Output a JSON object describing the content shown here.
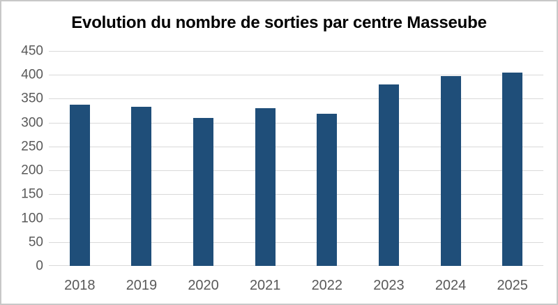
{
  "chart_data": {
    "type": "bar",
    "title": "Evolution du nombre de sorties par centre Masseube",
    "categories": [
      "2018",
      "2019",
      "2020",
      "2021",
      "2022",
      "2023",
      "2024",
      "2025"
    ],
    "values": [
      337,
      333,
      310,
      330,
      318,
      380,
      397,
      405
    ],
    "xlabel": "",
    "ylabel": "",
    "ylim": [
      0,
      450
    ],
    "ytick_step": 50,
    "yticks": [
      0,
      50,
      100,
      150,
      200,
      250,
      300,
      350,
      400,
      450
    ],
    "grid": true,
    "legend": false,
    "colors": {
      "bar": "#1F4E79",
      "gridline": "#D9D9D9",
      "axis_labels": "#595959",
      "title": "#000000",
      "frame_border": "#C8C8C8",
      "background": "#FFFFFF"
    }
  }
}
